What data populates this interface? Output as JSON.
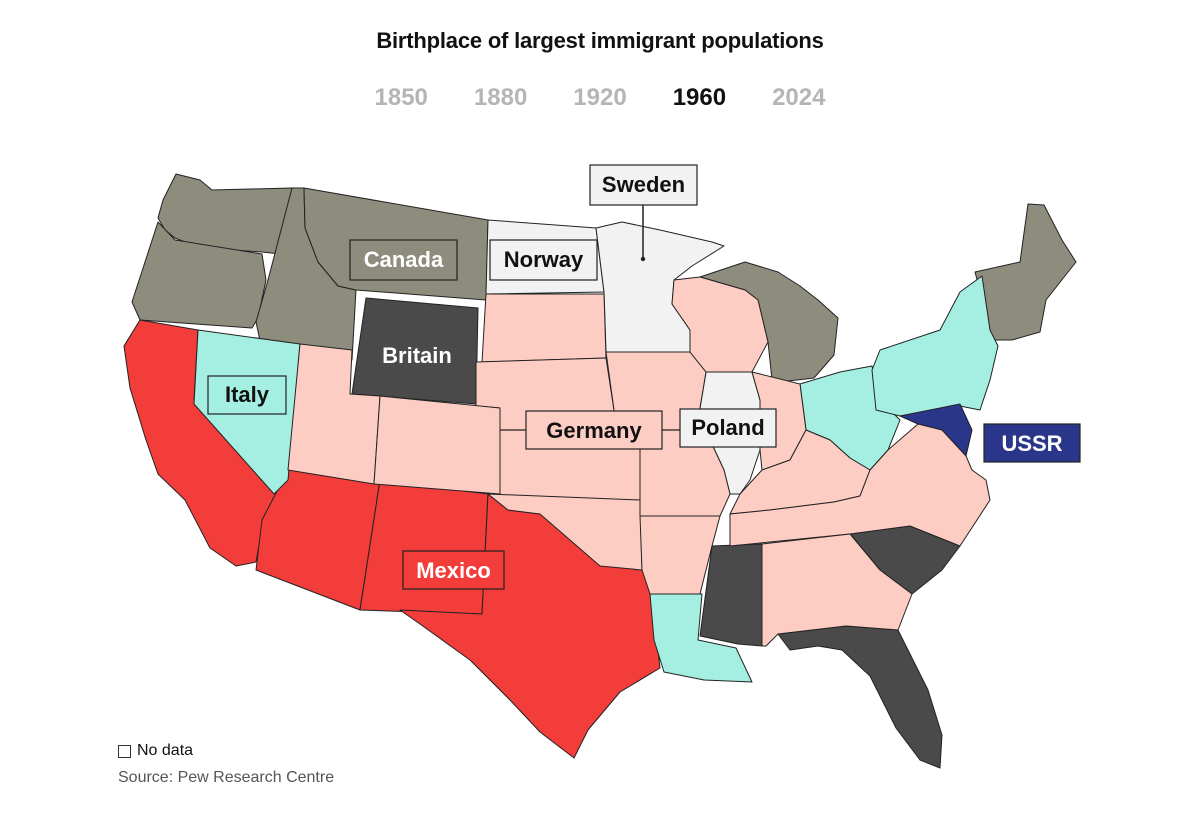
{
  "title": "Birthplace of largest immigrant populations",
  "years": [
    "1850",
    "1880",
    "1920",
    "1960",
    "2024"
  ],
  "active_year": "1960",
  "colors": {
    "Canada": "#8e8c7d",
    "Britain": "#4a4a4a",
    "Mexico": "#f23d3a",
    "Italy": "#a5efe2",
    "Germany": "#fdcdc4",
    "Norway": "#f2f2f2",
    "Sweden": "#f2f2f2",
    "Poland": "#f2f2f2",
    "USSR": "#29368a"
  },
  "labels": {
    "canada": "Canada",
    "norway": "Norway",
    "sweden": "Sweden",
    "britain": "Britain",
    "italy": "Italy",
    "germany": "Germany",
    "poland": "Poland",
    "ussr": "USSR",
    "mexico": "Mexico"
  },
  "legend": {
    "no_data": "No data"
  },
  "source": "Source: Pew Research Centre"
}
